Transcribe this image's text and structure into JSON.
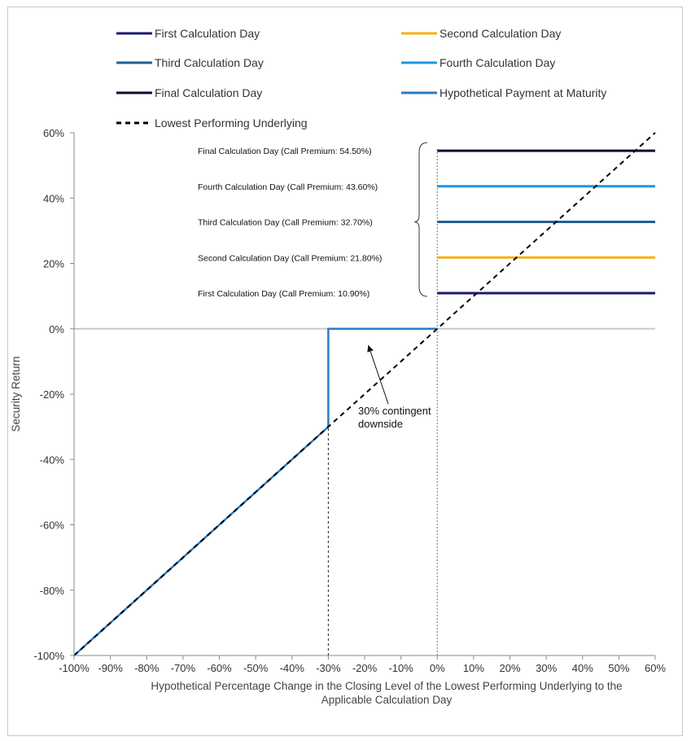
{
  "chart_data": {
    "type": "line",
    "title": "",
    "xlabel_lines": [
      "Hypothetical Percentage Change in the Closing Level of the Lowest Performing Underlying to the",
      "Applicable Calculation Day"
    ],
    "ylabel": "Security Return",
    "xlim": [
      -100,
      60
    ],
    "ylim": [
      -100,
      60
    ],
    "x_ticks": [
      -100,
      -90,
      -80,
      -70,
      -60,
      -50,
      -40,
      -30,
      -20,
      -10,
      0,
      10,
      20,
      30,
      40,
      50,
      60
    ],
    "x_tick_labels": [
      "-100%",
      "-90%",
      "-80%",
      "-70%",
      "-60%",
      "-50%",
      "-40%",
      "-30%",
      "-20%",
      "-10%",
      "0%",
      "10%",
      "20%",
      "30%",
      "40%",
      "50%",
      "60%"
    ],
    "y_ticks": [
      60,
      40,
      20,
      0,
      -20,
      -40,
      -60,
      -80,
      -100
    ],
    "y_tick_labels": [
      "60%",
      "40%",
      "20%",
      "0%",
      "-20%",
      "-40%",
      "-60%",
      "-80%",
      "-100%"
    ],
    "legend_placement": "top",
    "legend": [
      {
        "label": "First Calculation Day",
        "color": "#1a1a6e",
        "style": "solid"
      },
      {
        "label": "Second Calculation Day",
        "color": "#f5b014",
        "style": "solid"
      },
      {
        "label": "Third Calculation Day",
        "color": "#1f5f99",
        "style": "solid"
      },
      {
        "label": "Fourth Calculation Day",
        "color": "#1e96e0",
        "style": "solid"
      },
      {
        "label": "Final Calculation Day",
        "color": "#0d0d33",
        "style": "solid"
      },
      {
        "label": "Hypothetical Payment at Maturity",
        "color": "#2b7bc4",
        "style": "solid"
      },
      {
        "label": "Lowest Performing Underlying",
        "color": "#000000",
        "style": "dashed"
      }
    ],
    "series": [
      {
        "name": "First Calculation Day",
        "color": "#1a1a6e",
        "x": [
          0,
          60
        ],
        "y": [
          10.9,
          10.9
        ]
      },
      {
        "name": "Second Calculation Day",
        "color": "#f5b014",
        "x": [
          0,
          60
        ],
        "y": [
          21.8,
          21.8
        ]
      },
      {
        "name": "Third Calculation Day",
        "color": "#1f5f99",
        "x": [
          0,
          60
        ],
        "y": [
          32.7,
          32.7
        ]
      },
      {
        "name": "Fourth Calculation Day",
        "color": "#1e96e0",
        "x": [
          0,
          60
        ],
        "y": [
          43.6,
          43.6
        ]
      },
      {
        "name": "Final Calculation Day",
        "color": "#0d0d33",
        "x": [
          0,
          60
        ],
        "y": [
          54.5,
          54.5
        ]
      },
      {
        "name": "Hypothetical Payment at Maturity",
        "color": "#2b7bc4",
        "x": [
          -100,
          -30,
          -30,
          0
        ],
        "y": [
          -100,
          -30,
          0,
          0
        ]
      },
      {
        "name": "Lowest Performing Underlying",
        "color": "#000000",
        "dashed": true,
        "x": [
          -100,
          60
        ],
        "y": [
          -100,
          60
        ]
      }
    ],
    "reference_lines": [
      {
        "axis": "x",
        "value": -30,
        "style": "dashed",
        "from_y": -100,
        "to_y": -30
      },
      {
        "axis": "x",
        "value": 0,
        "style": "dotted",
        "from_y": -100,
        "to_y": 55
      }
    ],
    "zero_line": {
      "axis": "y",
      "value": 0,
      "color": "#c8c8c8"
    },
    "annotations": [
      {
        "text": "Final Calculation Day (Call Premium: 54.50%)",
        "y": 54.5
      },
      {
        "text": "Fourth Calculation Day (Call Premium:  43.60%)",
        "y": 43.6
      },
      {
        "text": "Third Calculation Day (Call Premium: 32.70%)",
        "y": 32.7
      },
      {
        "text": "Second Calculation Day (Call Premium: 21.80%)",
        "y": 21.8
      },
      {
        "text": "First Calculation Day (Call Premium:  10.90%)",
        "y": 10.9
      }
    ],
    "callout": {
      "lines": [
        "30% contingent",
        "downside"
      ],
      "arrow_to": [
        -19,
        -6
      ]
    }
  }
}
